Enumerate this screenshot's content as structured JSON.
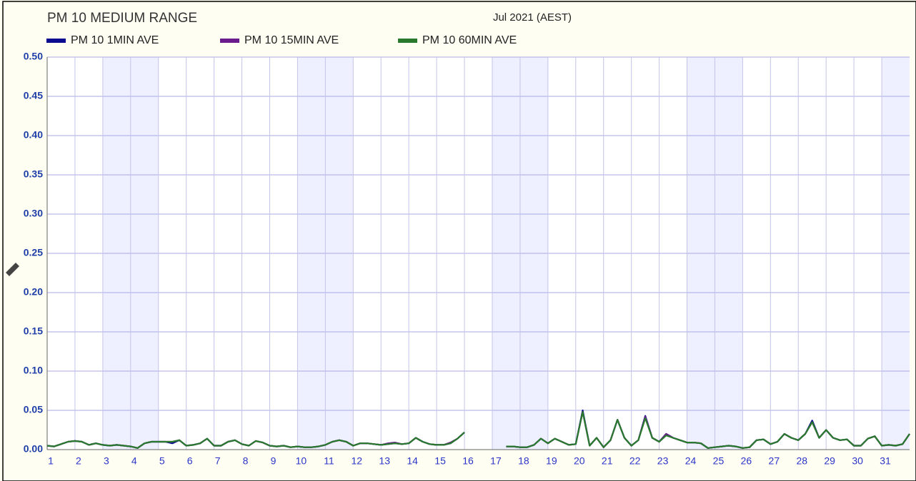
{
  "chart_data": {
    "type": "line",
    "title": "PM 10 MEDIUM RANGE",
    "subtitle": "Jul 2021 (AEST)",
    "x": [
      1,
      1.25,
      1.5,
      1.75,
      2,
      2.25,
      2.5,
      2.75,
      3,
      3.25,
      3.5,
      3.75,
      4,
      4.25,
      4.5,
      4.75,
      5,
      5.25,
      5.5,
      5.75,
      6,
      6.25,
      6.5,
      6.75,
      7,
      7.25,
      7.5,
      7.75,
      8,
      8.25,
      8.5,
      8.75,
      9,
      9.25,
      9.5,
      9.75,
      10,
      10.25,
      10.5,
      10.75,
      11,
      11.25,
      11.5,
      11.75,
      12,
      12.25,
      12.5,
      12.75,
      13,
      13.25,
      13.5,
      13.75,
      14,
      14.25,
      14.5,
      14.75,
      15,
      15.25,
      15.5,
      15.75,
      16,
      16.25,
      16.5,
      16.75,
      17,
      17.25,
      17.5,
      17.75,
      18,
      18.25,
      18.5,
      18.75,
      19,
      19.25,
      19.5,
      19.75,
      20,
      20.25,
      20.5,
      20.75,
      21,
      21.25,
      21.5,
      21.75,
      22,
      22.25,
      22.5,
      22.75,
      23,
      23.25,
      23.5,
      23.75,
      24,
      24.25,
      24.5,
      24.75,
      25,
      25.25,
      25.5,
      25.75,
      26,
      26.25,
      26.5,
      26.75,
      27,
      27.25,
      27.5,
      27.75,
      28,
      28.25,
      28.5,
      28.75,
      29,
      29.25,
      29.5,
      29.75,
      30,
      30.25,
      30.5,
      30.75,
      31,
      31.25,
      31.5,
      31.75,
      32
    ],
    "series": [
      {
        "name": "PM 10 1MIN AVE",
        "color": "#0b0b8f",
        "values": [
          0.005,
          0.004,
          0.007,
          0.01,
          0.011,
          0.01,
          0.006,
          0.008,
          0.006,
          0.005,
          0.006,
          0.005,
          0.004,
          0.002,
          0.008,
          0.01,
          0.01,
          0.01,
          0.008,
          0.012,
          0.005,
          0.006,
          0.008,
          0.014,
          0.005,
          0.005,
          0.01,
          0.012,
          0.007,
          0.005,
          0.011,
          0.009,
          0.005,
          0.004,
          0.005,
          0.003,
          0.004,
          0.003,
          0.003,
          0.004,
          0.006,
          0.01,
          0.012,
          0.01,
          0.005,
          0.008,
          0.008,
          0.007,
          0.006,
          0.007,
          0.008,
          0.007,
          0.008,
          0.015,
          0.01,
          0.007,
          0.006,
          0.006,
          0.008,
          0.014,
          0.022,
          null,
          null,
          null,
          null,
          null,
          0.004,
          0.004,
          0.003,
          0.003,
          0.006,
          0.014,
          0.008,
          0.014,
          0.01,
          0.006,
          0.007,
          0.05,
          0.005,
          0.015,
          0.003,
          0.012,
          0.038,
          0.015,
          0.005,
          0.012,
          0.043,
          0.015,
          0.01,
          0.02,
          0.015,
          0.012,
          0.009,
          0.009,
          0.008,
          0.002,
          0.003,
          0.004,
          0.005,
          0.004,
          0.002,
          0.003,
          0.012,
          0.013,
          0.007,
          0.01,
          0.02,
          0.015,
          0.012,
          0.02,
          0.037,
          0.015,
          0.025,
          0.015,
          0.012,
          0.013,
          0.005,
          0.005,
          0.014,
          0.017,
          0.005,
          0.006,
          0.005,
          0.007,
          0.02
        ]
      },
      {
        "name": "PM 10 15MIN AVE",
        "color": "#6b1c8c",
        "values": [
          0.005,
          0.004,
          0.007,
          0.01,
          0.011,
          0.01,
          0.006,
          0.008,
          0.006,
          0.005,
          0.006,
          0.005,
          0.004,
          0.002,
          0.008,
          0.01,
          0.01,
          0.01,
          0.01,
          0.012,
          0.005,
          0.006,
          0.008,
          0.014,
          0.005,
          0.005,
          0.01,
          0.012,
          0.007,
          0.005,
          0.011,
          0.009,
          0.005,
          0.004,
          0.005,
          0.003,
          0.004,
          0.003,
          0.003,
          0.004,
          0.006,
          0.01,
          0.012,
          0.01,
          0.005,
          0.008,
          0.008,
          0.007,
          0.006,
          0.008,
          0.009,
          0.007,
          0.008,
          0.015,
          0.01,
          0.007,
          0.006,
          0.006,
          0.009,
          0.014,
          0.022,
          null,
          null,
          null,
          null,
          null,
          0.004,
          0.004,
          0.003,
          0.003,
          0.006,
          0.014,
          0.008,
          0.014,
          0.01,
          0.006,
          0.007,
          0.048,
          0.005,
          0.015,
          0.003,
          0.012,
          0.038,
          0.015,
          0.005,
          0.012,
          0.042,
          0.015,
          0.01,
          0.02,
          0.015,
          0.012,
          0.009,
          0.009,
          0.008,
          0.002,
          0.003,
          0.004,
          0.005,
          0.004,
          0.002,
          0.003,
          0.012,
          0.013,
          0.007,
          0.01,
          0.02,
          0.015,
          0.012,
          0.02,
          0.035,
          0.015,
          0.025,
          0.015,
          0.012,
          0.013,
          0.005,
          0.005,
          0.014,
          0.017,
          0.005,
          0.006,
          0.005,
          0.007,
          0.02
        ]
      },
      {
        "name": "PM 10 60MIN AVE",
        "color": "#2a7a2e",
        "values": [
          0.005,
          0.004,
          0.007,
          0.01,
          0.011,
          0.01,
          0.006,
          0.008,
          0.006,
          0.005,
          0.006,
          0.005,
          0.004,
          0.002,
          0.008,
          0.01,
          0.01,
          0.01,
          0.01,
          0.012,
          0.005,
          0.006,
          0.008,
          0.014,
          0.005,
          0.005,
          0.01,
          0.012,
          0.007,
          0.005,
          0.011,
          0.009,
          0.005,
          0.004,
          0.005,
          0.003,
          0.004,
          0.003,
          0.003,
          0.004,
          0.006,
          0.01,
          0.012,
          0.01,
          0.005,
          0.008,
          0.008,
          0.007,
          0.006,
          0.007,
          0.008,
          0.007,
          0.008,
          0.015,
          0.01,
          0.007,
          0.006,
          0.006,
          0.008,
          0.014,
          0.022,
          null,
          null,
          null,
          null,
          null,
          0.004,
          0.004,
          0.003,
          0.003,
          0.006,
          0.014,
          0.008,
          0.014,
          0.01,
          0.006,
          0.007,
          0.048,
          0.005,
          0.015,
          0.003,
          0.012,
          0.038,
          0.015,
          0.005,
          0.012,
          0.04,
          0.015,
          0.01,
          0.018,
          0.015,
          0.012,
          0.009,
          0.009,
          0.008,
          0.002,
          0.003,
          0.004,
          0.005,
          0.004,
          0.002,
          0.003,
          0.012,
          0.013,
          0.007,
          0.01,
          0.02,
          0.015,
          0.012,
          0.02,
          0.035,
          0.015,
          0.025,
          0.015,
          0.012,
          0.013,
          0.005,
          0.005,
          0.014,
          0.017,
          0.005,
          0.006,
          0.005,
          0.007,
          0.02
        ]
      }
    ],
    "xlim": [
      1,
      32
    ],
    "xticks": [
      1,
      2,
      3,
      4,
      5,
      6,
      7,
      8,
      9,
      10,
      11,
      12,
      13,
      14,
      15,
      16,
      17,
      18,
      19,
      20,
      21,
      22,
      23,
      24,
      25,
      26,
      27,
      28,
      29,
      30,
      31
    ],
    "ylim": [
      0,
      0.5
    ],
    "yticks": [
      {
        "value": 0,
        "label": "0.00"
      },
      {
        "value": 0.05,
        "label": "0.05"
      },
      {
        "value": 0.1,
        "label": "0.10"
      },
      {
        "value": 0.15,
        "label": "0.15"
      },
      {
        "value": 0.2,
        "label": "0.20"
      },
      {
        "value": 0.25,
        "label": "0.25"
      },
      {
        "value": 0.3,
        "label": "0.30"
      },
      {
        "value": 0.35,
        "label": "0.35"
      },
      {
        "value": 0.4,
        "label": "0.40"
      },
      {
        "value": 0.45,
        "label": "0.45"
      },
      {
        "value": 0.5,
        "label": "0.50"
      }
    ],
    "grid": true,
    "legend": "top-left"
  }
}
